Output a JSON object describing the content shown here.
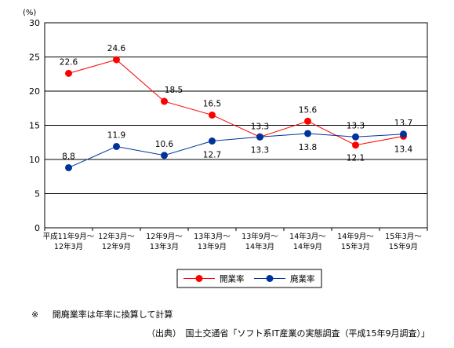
{
  "chart_data": {
    "type": "line",
    "y_unit_label": "(%)",
    "ylim": [
      0,
      30
    ],
    "yticks": [
      "0",
      "5",
      "10",
      "15",
      "20",
      "25",
      "30"
    ],
    "grid": true,
    "legend_position": "bottom-center",
    "categories": [
      [
        "平成11年9月～",
        "12年3月"
      ],
      [
        "12年3月～",
        "12年9月"
      ],
      [
        "12年9月～",
        "13年3月"
      ],
      [
        "13年3月～",
        "13年9月"
      ],
      [
        "13年9月～",
        "14年3月"
      ],
      [
        "14年3月～",
        "14年9月"
      ],
      [
        "14年9月～",
        "15年3月"
      ],
      [
        "15年3月～",
        "15年9月"
      ]
    ],
    "series": [
      {
        "name": "開業率",
        "color": "#ff0000",
        "values": [
          22.6,
          24.6,
          18.5,
          16.5,
          13.3,
          15.6,
          12.1,
          13.4
        ],
        "labels": [
          "22.6",
          "24.6",
          "18.5",
          "16.5",
          "13.3",
          "15.6",
          "12.1",
          "13.4"
        ]
      },
      {
        "name": "廃業率",
        "color": "#003399",
        "values": [
          8.8,
          11.9,
          10.6,
          12.7,
          13.3,
          13.8,
          13.3,
          13.7
        ],
        "labels": [
          "8.8",
          "11.9",
          "10.6",
          "12.7",
          "13.3",
          "13.8",
          "13.3",
          "13.7"
        ]
      }
    ]
  },
  "notes": {
    "note1_mark": "※",
    "note1_text": "開廃業率は年率に換算して計算",
    "source": "（出典）　国土交通省「ソフト系IT産業の実態調査（平成15年9月調査）」"
  }
}
